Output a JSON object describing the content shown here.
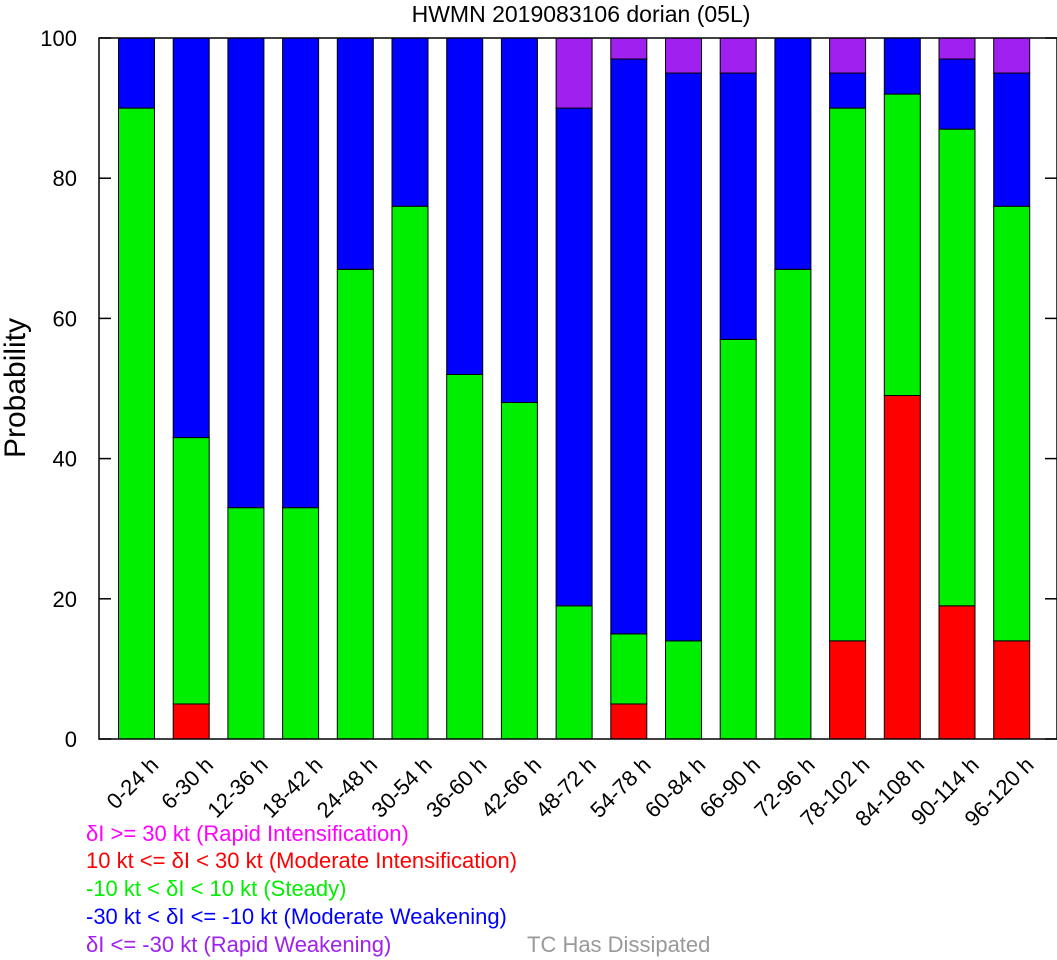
{
  "chart_data": {
    "type": "bar",
    "stacked": true,
    "title": "HWMN 2019083106 dorian (05L)",
    "xlabel": "",
    "ylabel": "Probability",
    "ylim": [
      0,
      100
    ],
    "yticks": [
      0,
      20,
      40,
      60,
      80,
      100
    ],
    "grid": false,
    "categories": [
      "0-24 h",
      "6-30 h",
      "12-36 h",
      "18-42 h",
      "24-48 h",
      "30-54 h",
      "36-60 h",
      "42-66 h",
      "48-72 h",
      "54-78 h",
      "60-84 h",
      "66-90 h",
      "72-96 h",
      "78-102 h",
      "84-108 h",
      "90-114 h",
      "96-120 h"
    ],
    "series": [
      {
        "key": "mi",
        "color": "#ff0000",
        "values": [
          0,
          5,
          0,
          0,
          0,
          0,
          0,
          0,
          0,
          5,
          0,
          0,
          0,
          14,
          49,
          19,
          14
        ]
      },
      {
        "key": "st",
        "color": "#00ee00",
        "values": [
          90,
          38,
          33,
          33,
          67,
          76,
          52,
          48,
          19,
          10,
          14,
          57,
          67,
          76,
          43,
          68,
          62
        ]
      },
      {
        "key": "mw",
        "color": "#0000ff",
        "values": [
          10,
          57,
          67,
          67,
          33,
          24,
          48,
          52,
          71,
          82,
          81,
          38,
          33,
          5,
          8,
          10,
          19
        ]
      },
      {
        "key": "rw",
        "color": "#a020f0",
        "values": [
          0,
          0,
          0,
          0,
          0,
          0,
          0,
          0,
          10,
          3,
          5,
          5,
          0,
          5,
          0,
          3,
          5
        ]
      }
    ]
  },
  "legend": [
    {
      "color": "#ff00ff",
      "text": "δI >= 30 kt (Rapid Intensification)"
    },
    {
      "color": "#ff0000",
      "text": "10 kt <= δI < 30 kt (Moderate Intensification)"
    },
    {
      "color": "#00ee00",
      "text": "-10 kt < δI < 10 kt (Steady)"
    },
    {
      "color": "#0000ff",
      "text": "-30 kt < δI <= -10 kt (Moderate Weakening)"
    },
    {
      "color": "#a020f0",
      "text": "δI <= -30 kt (Rapid Weakening)"
    }
  ],
  "dissipated": {
    "color": "#999999",
    "text": "TC Has Dissipated"
  }
}
